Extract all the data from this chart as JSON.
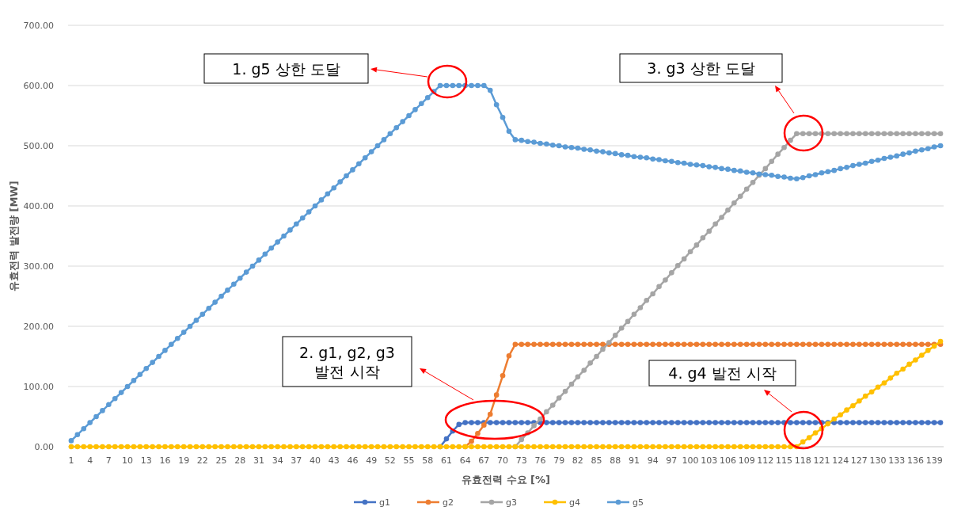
{
  "chart_data": {
    "type": "line",
    "xlabel": "유효전력 수요 [%]",
    "ylabel": "유효전력 발전량 [MW]",
    "categories": [
      "1",
      null,
      null,
      "4",
      null,
      null,
      "7",
      null,
      null,
      "10",
      null,
      null,
      "13",
      null,
      null,
      "16",
      null,
      null,
      "19",
      null,
      null,
      "22",
      null,
      null,
      "25",
      null,
      null,
      "28",
      null,
      null,
      "31",
      null,
      null,
      "34",
      null,
      null,
      "37",
      null,
      null,
      "40",
      null,
      null,
      "43",
      null,
      null,
      "46",
      null,
      null,
      "49",
      null,
      null,
      "52",
      null,
      null,
      "55",
      null,
      null,
      "58",
      null,
      null,
      "61",
      null,
      null,
      "64",
      null,
      null,
      "67",
      null,
      null,
      "70",
      null,
      null,
      "73",
      null,
      null,
      "76",
      null,
      null,
      "79",
      null,
      null,
      "82",
      null,
      null,
      "85",
      null,
      null,
      "88",
      null,
      null,
      "91",
      null,
      null,
      "94",
      null,
      null,
      "97",
      null,
      null,
      "100",
      null,
      null,
      "103",
      null,
      null,
      "106",
      null,
      null,
      "109",
      null,
      null,
      "112",
      null,
      null,
      "115",
      null,
      null,
      "118",
      null,
      null,
      "121",
      null,
      null,
      "124",
      null,
      null,
      "127",
      null,
      null,
      "130",
      null,
      null,
      "133",
      null,
      null,
      "136",
      null,
      null,
      "139",
      null
    ],
    "series": [
      {
        "name": "g1",
        "color": "#4472c4",
        "values": [
          null,
          null,
          null,
          null,
          null,
          null,
          null,
          null,
          null,
          null,
          null,
          null,
          null,
          null,
          null,
          null,
          null,
          null,
          null,
          null,
          null,
          null,
          null,
          null,
          null,
          null,
          null,
          null,
          null,
          null,
          null,
          null,
          null,
          null,
          null,
          null,
          null,
          null,
          null,
          null,
          null,
          null,
          null,
          null,
          null,
          null,
          null,
          null,
          null,
          null,
          null,
          null,
          null,
          null,
          null,
          null,
          null,
          null,
          null,
          0,
          13,
          26,
          37,
          40,
          40,
          40,
          40,
          40,
          40,
          40,
          40,
          40,
          40,
          40,
          40,
          40,
          40,
          40,
          40,
          40,
          40,
          40,
          40,
          40,
          40,
          40,
          40,
          40,
          40,
          40,
          40,
          40,
          40,
          40,
          40,
          40,
          40,
          40,
          40,
          40,
          40,
          40,
          40,
          40,
          40,
          40,
          40,
          40,
          40,
          40,
          40,
          40,
          40,
          40,
          40,
          40,
          40,
          40,
          40,
          40,
          40,
          40,
          40,
          40,
          40,
          40,
          40,
          40,
          40,
          40,
          40,
          40,
          40,
          40,
          40,
          40,
          40,
          40,
          40,
          40
        ]
      },
      {
        "name": "g2",
        "color": "#ed7d31",
        "values": [
          null,
          null,
          null,
          null,
          null,
          null,
          null,
          null,
          null,
          null,
          null,
          null,
          null,
          null,
          null,
          null,
          null,
          null,
          null,
          null,
          null,
          null,
          null,
          null,
          null,
          null,
          null,
          null,
          null,
          null,
          null,
          null,
          null,
          null,
          null,
          null,
          null,
          null,
          null,
          null,
          null,
          null,
          null,
          null,
          null,
          null,
          null,
          null,
          null,
          null,
          null,
          null,
          null,
          null,
          null,
          null,
          null,
          null,
          null,
          null,
          null,
          null,
          null,
          0,
          9,
          22,
          36,
          54,
          86,
          118,
          151,
          170,
          170,
          170,
          170,
          170,
          170,
          170,
          170,
          170,
          170,
          170,
          170,
          170,
          170,
          170,
          170,
          170,
          170,
          170,
          170,
          170,
          170,
          170,
          170,
          170,
          170,
          170,
          170,
          170,
          170,
          170,
          170,
          170,
          170,
          170,
          170,
          170,
          170,
          170,
          170,
          170,
          170,
          170,
          170,
          170,
          170,
          170,
          170,
          170,
          170,
          170,
          170,
          170,
          170,
          170,
          170,
          170,
          170,
          170,
          170,
          170,
          170,
          170,
          170,
          170,
          170,
          170,
          170,
          170
        ]
      },
      {
        "name": "g3",
        "color": "#a5a5a5",
        "values": [
          null,
          null,
          null,
          null,
          null,
          null,
          null,
          null,
          null,
          null,
          null,
          null,
          null,
          null,
          null,
          null,
          null,
          null,
          null,
          null,
          null,
          null,
          null,
          null,
          null,
          null,
          null,
          null,
          null,
          null,
          null,
          null,
          null,
          null,
          null,
          null,
          null,
          null,
          null,
          null,
          null,
          null,
          null,
          null,
          null,
          null,
          null,
          null,
          null,
          null,
          null,
          null,
          null,
          null,
          null,
          null,
          null,
          null,
          null,
          null,
          null,
          null,
          null,
          null,
          null,
          null,
          null,
          null,
          null,
          null,
          null,
          0,
          12,
          23,
          35,
          46,
          58,
          69,
          81,
          92,
          104,
          116,
          127,
          139,
          150,
          162,
          173,
          185,
          197,
          208,
          220,
          231,
          243,
          254,
          266,
          277,
          289,
          301,
          312,
          324,
          335,
          347,
          358,
          370,
          381,
          393,
          405,
          416,
          428,
          439,
          451,
          462,
          474,
          486,
          497,
          509,
          520,
          520,
          520,
          520,
          520,
          520,
          520,
          520,
          520,
          520,
          520,
          520,
          520,
          520,
          520,
          520,
          520,
          520,
          520,
          520,
          520,
          520,
          520,
          520
        ]
      },
      {
        "name": "g4",
        "color": "#ffc000",
        "values": [
          0,
          0,
          0,
          0,
          0,
          0,
          0,
          0,
          0,
          0,
          0,
          0,
          0,
          0,
          0,
          0,
          0,
          0,
          0,
          0,
          0,
          0,
          0,
          0,
          0,
          0,
          0,
          0,
          0,
          0,
          0,
          0,
          0,
          0,
          0,
          0,
          0,
          0,
          0,
          0,
          0,
          0,
          0,
          0,
          0,
          0,
          0,
          0,
          0,
          0,
          0,
          0,
          0,
          0,
          0,
          0,
          0,
          0,
          0,
          0,
          0,
          0,
          0,
          0,
          0,
          0,
          0,
          0,
          0,
          0,
          0,
          0,
          0,
          0,
          0,
          0,
          0,
          0,
          0,
          0,
          0,
          0,
          0,
          0,
          0,
          0,
          0,
          0,
          0,
          0,
          0,
          0,
          0,
          0,
          0,
          0,
          0,
          0,
          0,
          0,
          0,
          0,
          0,
          0,
          0,
          0,
          0,
          0,
          0,
          0,
          0,
          0,
          0,
          0,
          0,
          0,
          0,
          8,
          15,
          23,
          30,
          38,
          46,
          53,
          61,
          68,
          76,
          84,
          91,
          99,
          106,
          114,
          122,
          129,
          137,
          144,
          152,
          160,
          167,
          175
        ]
      },
      {
        "name": "g5",
        "color": "#5b9bd5",
        "values": [
          10,
          20,
          30,
          40,
          50,
          60,
          70,
          80,
          90,
          100,
          110,
          120,
          130,
          140,
          150,
          160,
          170,
          180,
          190,
          200,
          210,
          220,
          230,
          240,
          250,
          260,
          270,
          280,
          290,
          300,
          310,
          320,
          330,
          340,
          350,
          360,
          370,
          380,
          390,
          400,
          410,
          420,
          430,
          440,
          450,
          460,
          470,
          480,
          490,
          500,
          510,
          520,
          530,
          540,
          550,
          560,
          570,
          580,
          590,
          600,
          600,
          600,
          600,
          600,
          600,
          600,
          600,
          592,
          568,
          547,
          524,
          510,
          509,
          507,
          506,
          504,
          503,
          501,
          500,
          498,
          497,
          496,
          494,
          493,
          491,
          490,
          488,
          487,
          485,
          484,
          482,
          481,
          480,
          478,
          477,
          475,
          474,
          472,
          471,
          469,
          468,
          467,
          465,
          464,
          462,
          461,
          459,
          458,
          456,
          455,
          453,
          452,
          451,
          449,
          448,
          446,
          445,
          447,
          450,
          452,
          455,
          457,
          459,
          462,
          464,
          467,
          469,
          471,
          474,
          476,
          479,
          481,
          483,
          486,
          488,
          491,
          493,
          495,
          498,
          500
        ]
      }
    ],
    "ylim": [
      0,
      700
    ],
    "yticks": [
      {
        "value": 0,
        "label": "0.00"
      },
      {
        "value": 100,
        "label": "100.00"
      },
      {
        "value": 200,
        "label": "200.00"
      },
      {
        "value": 300,
        "label": "300.00"
      },
      {
        "value": 400,
        "label": "400.00"
      },
      {
        "value": 500,
        "label": "500.00"
      },
      {
        "value": 600,
        "label": "600.00"
      },
      {
        "value": 700,
        "label": "700.00"
      }
    ],
    "grid": "y",
    "legend": "bottom",
    "marker": "circle",
    "line_style": "solid",
    "annotations": [
      "1. g5 상한 도달",
      "2. g1, g2, g3\n발전 시작",
      "3. g3 상한 도달",
      "4. g4 발전 시작"
    ]
  }
}
